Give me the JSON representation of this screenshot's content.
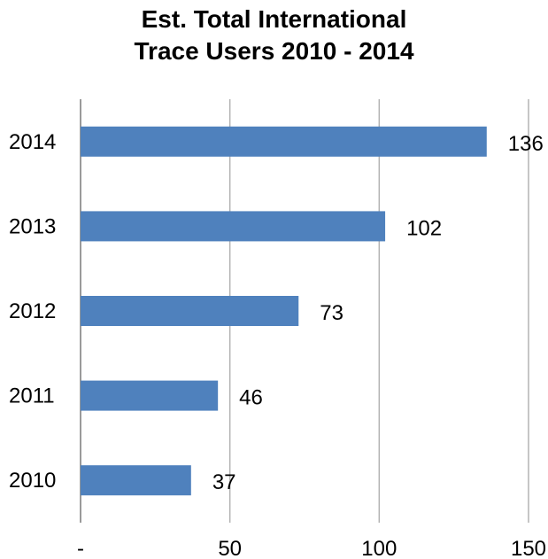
{
  "chart_data": {
    "type": "bar",
    "orientation": "horizontal",
    "title_lines": [
      "Est. Total International",
      "Trace Users 2010 - 2014"
    ],
    "categories": [
      "2010",
      "2011",
      "2012",
      "2013",
      "2014"
    ],
    "values": [
      37,
      46,
      73,
      102,
      136
    ],
    "xlim": [
      0,
      150
    ],
    "x_ticks": [
      0,
      50,
      100,
      150
    ],
    "x_tick_labels": [
      "-",
      "50",
      "100",
      "150"
    ],
    "bar_color": "#4F81BD",
    "grid": true,
    "legend": "none"
  }
}
